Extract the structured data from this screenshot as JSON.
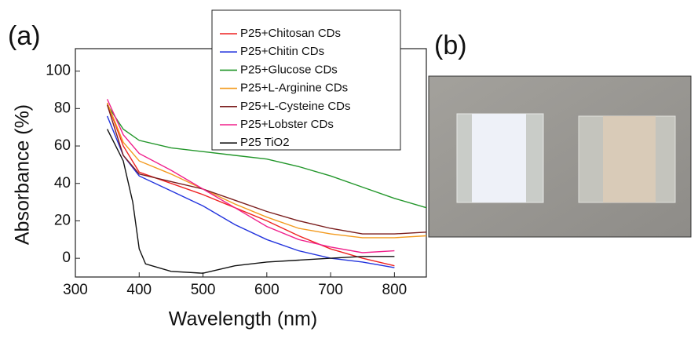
{
  "panel_labels": [
    "(a)",
    "(b)"
  ],
  "chart_data": {
    "type": "line",
    "xlabel": "Wavelength (nm)",
    "ylabel": "Absorbance (%)",
    "xlim": [
      300,
      850
    ],
    "ylim": [
      -10,
      112
    ],
    "xticks": [
      300,
      400,
      500,
      600,
      700,
      800
    ],
    "yticks": [
      0,
      20,
      40,
      60,
      80,
      100
    ],
    "legend": "top-right",
    "series": [
      {
        "name": "P25+Chitosan CDs",
        "color": "#ee2222",
        "x": [
          350,
          375,
          400,
          450,
          500,
          550,
          600,
          650,
          700,
          750,
          800
        ],
        "values": [
          83,
          60,
          46,
          40,
          34,
          27,
          20,
          12,
          5,
          0,
          -4
        ]
      },
      {
        "name": "P25+Chitin CDs",
        "color": "#2233dd",
        "x": [
          350,
          375,
          400,
          450,
          500,
          550,
          600,
          650,
          700,
          750,
          800
        ],
        "values": [
          76,
          55,
          44,
          36,
          28,
          18,
          10,
          4,
          0,
          -2,
          -5
        ]
      },
      {
        "name": "P25+Glucose CDs",
        "color": "#22962a",
        "x": [
          350,
          375,
          400,
          450,
          500,
          550,
          600,
          650,
          700,
          750,
          800,
          850
        ],
        "values": [
          82,
          69,
          63,
          59,
          57,
          55,
          53,
          49,
          44,
          38,
          32,
          27
        ]
      },
      {
        "name": "P25+L-Arginine CDs",
        "color": "#f39a1e",
        "x": [
          350,
          375,
          400,
          450,
          500,
          550,
          600,
          650,
          700,
          750,
          800,
          850
        ],
        "values": [
          83,
          62,
          52,
          45,
          37,
          29,
          22,
          16,
          13,
          11,
          11,
          12
        ]
      },
      {
        "name": "P25+L-Cysteine CDs",
        "color": "#7a1c1c",
        "x": [
          350,
          375,
          400,
          450,
          500,
          550,
          600,
          650,
          700,
          750,
          800,
          850
        ],
        "values": [
          82,
          55,
          45,
          41,
          37,
          31,
          25,
          20,
          16,
          13,
          13,
          14
        ]
      },
      {
        "name": "P25+Lobster CDs",
        "color": "#f0208c",
        "x": [
          350,
          375,
          400,
          450,
          500,
          550,
          600,
          650,
          700,
          750,
          800
        ],
        "values": [
          85,
          66,
          56,
          47,
          37,
          27,
          17,
          10,
          6,
          3,
          4
        ]
      },
      {
        "name": "P25 TiO2",
        "color": "#111111",
        "x": [
          350,
          375,
          390,
          400,
          410,
          450,
          500,
          550,
          600,
          650,
          700,
          750,
          800
        ],
        "values": [
          69,
          52,
          30,
          5,
          -3,
          -7,
          -8,
          -4,
          -2,
          -1,
          0,
          1,
          1
        ]
      }
    ]
  }
}
